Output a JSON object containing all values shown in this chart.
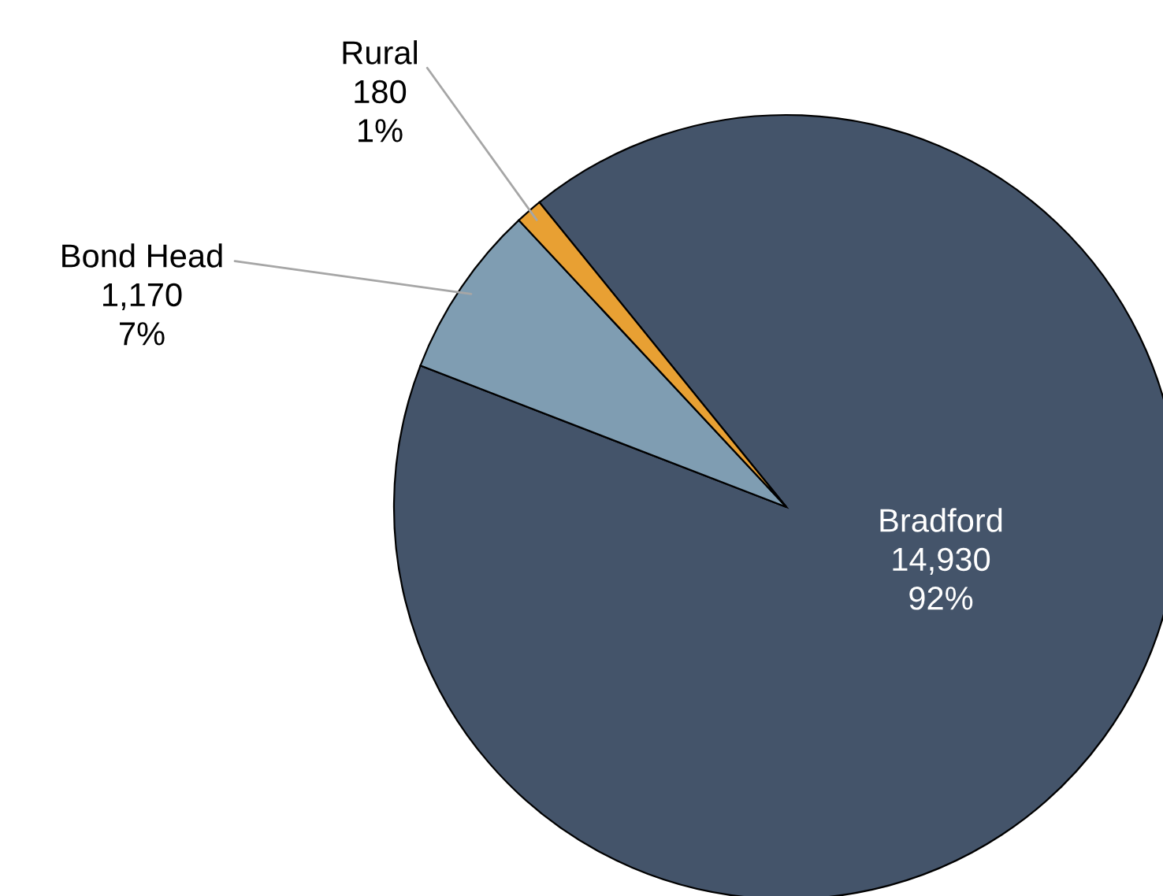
{
  "chart_data": {
    "type": "pie",
    "categories": [
      "Bradford",
      "Bond Head",
      "Rural"
    ],
    "values": [
      14930,
      1170,
      180
    ],
    "value_labels": [
      "14,930\n92%",
      "1,170\n7%",
      "180\n1%"
    ],
    "colors": [
      "#44546a",
      "#7f9db2",
      "#e8a033"
    ],
    "legend": false
  }
}
